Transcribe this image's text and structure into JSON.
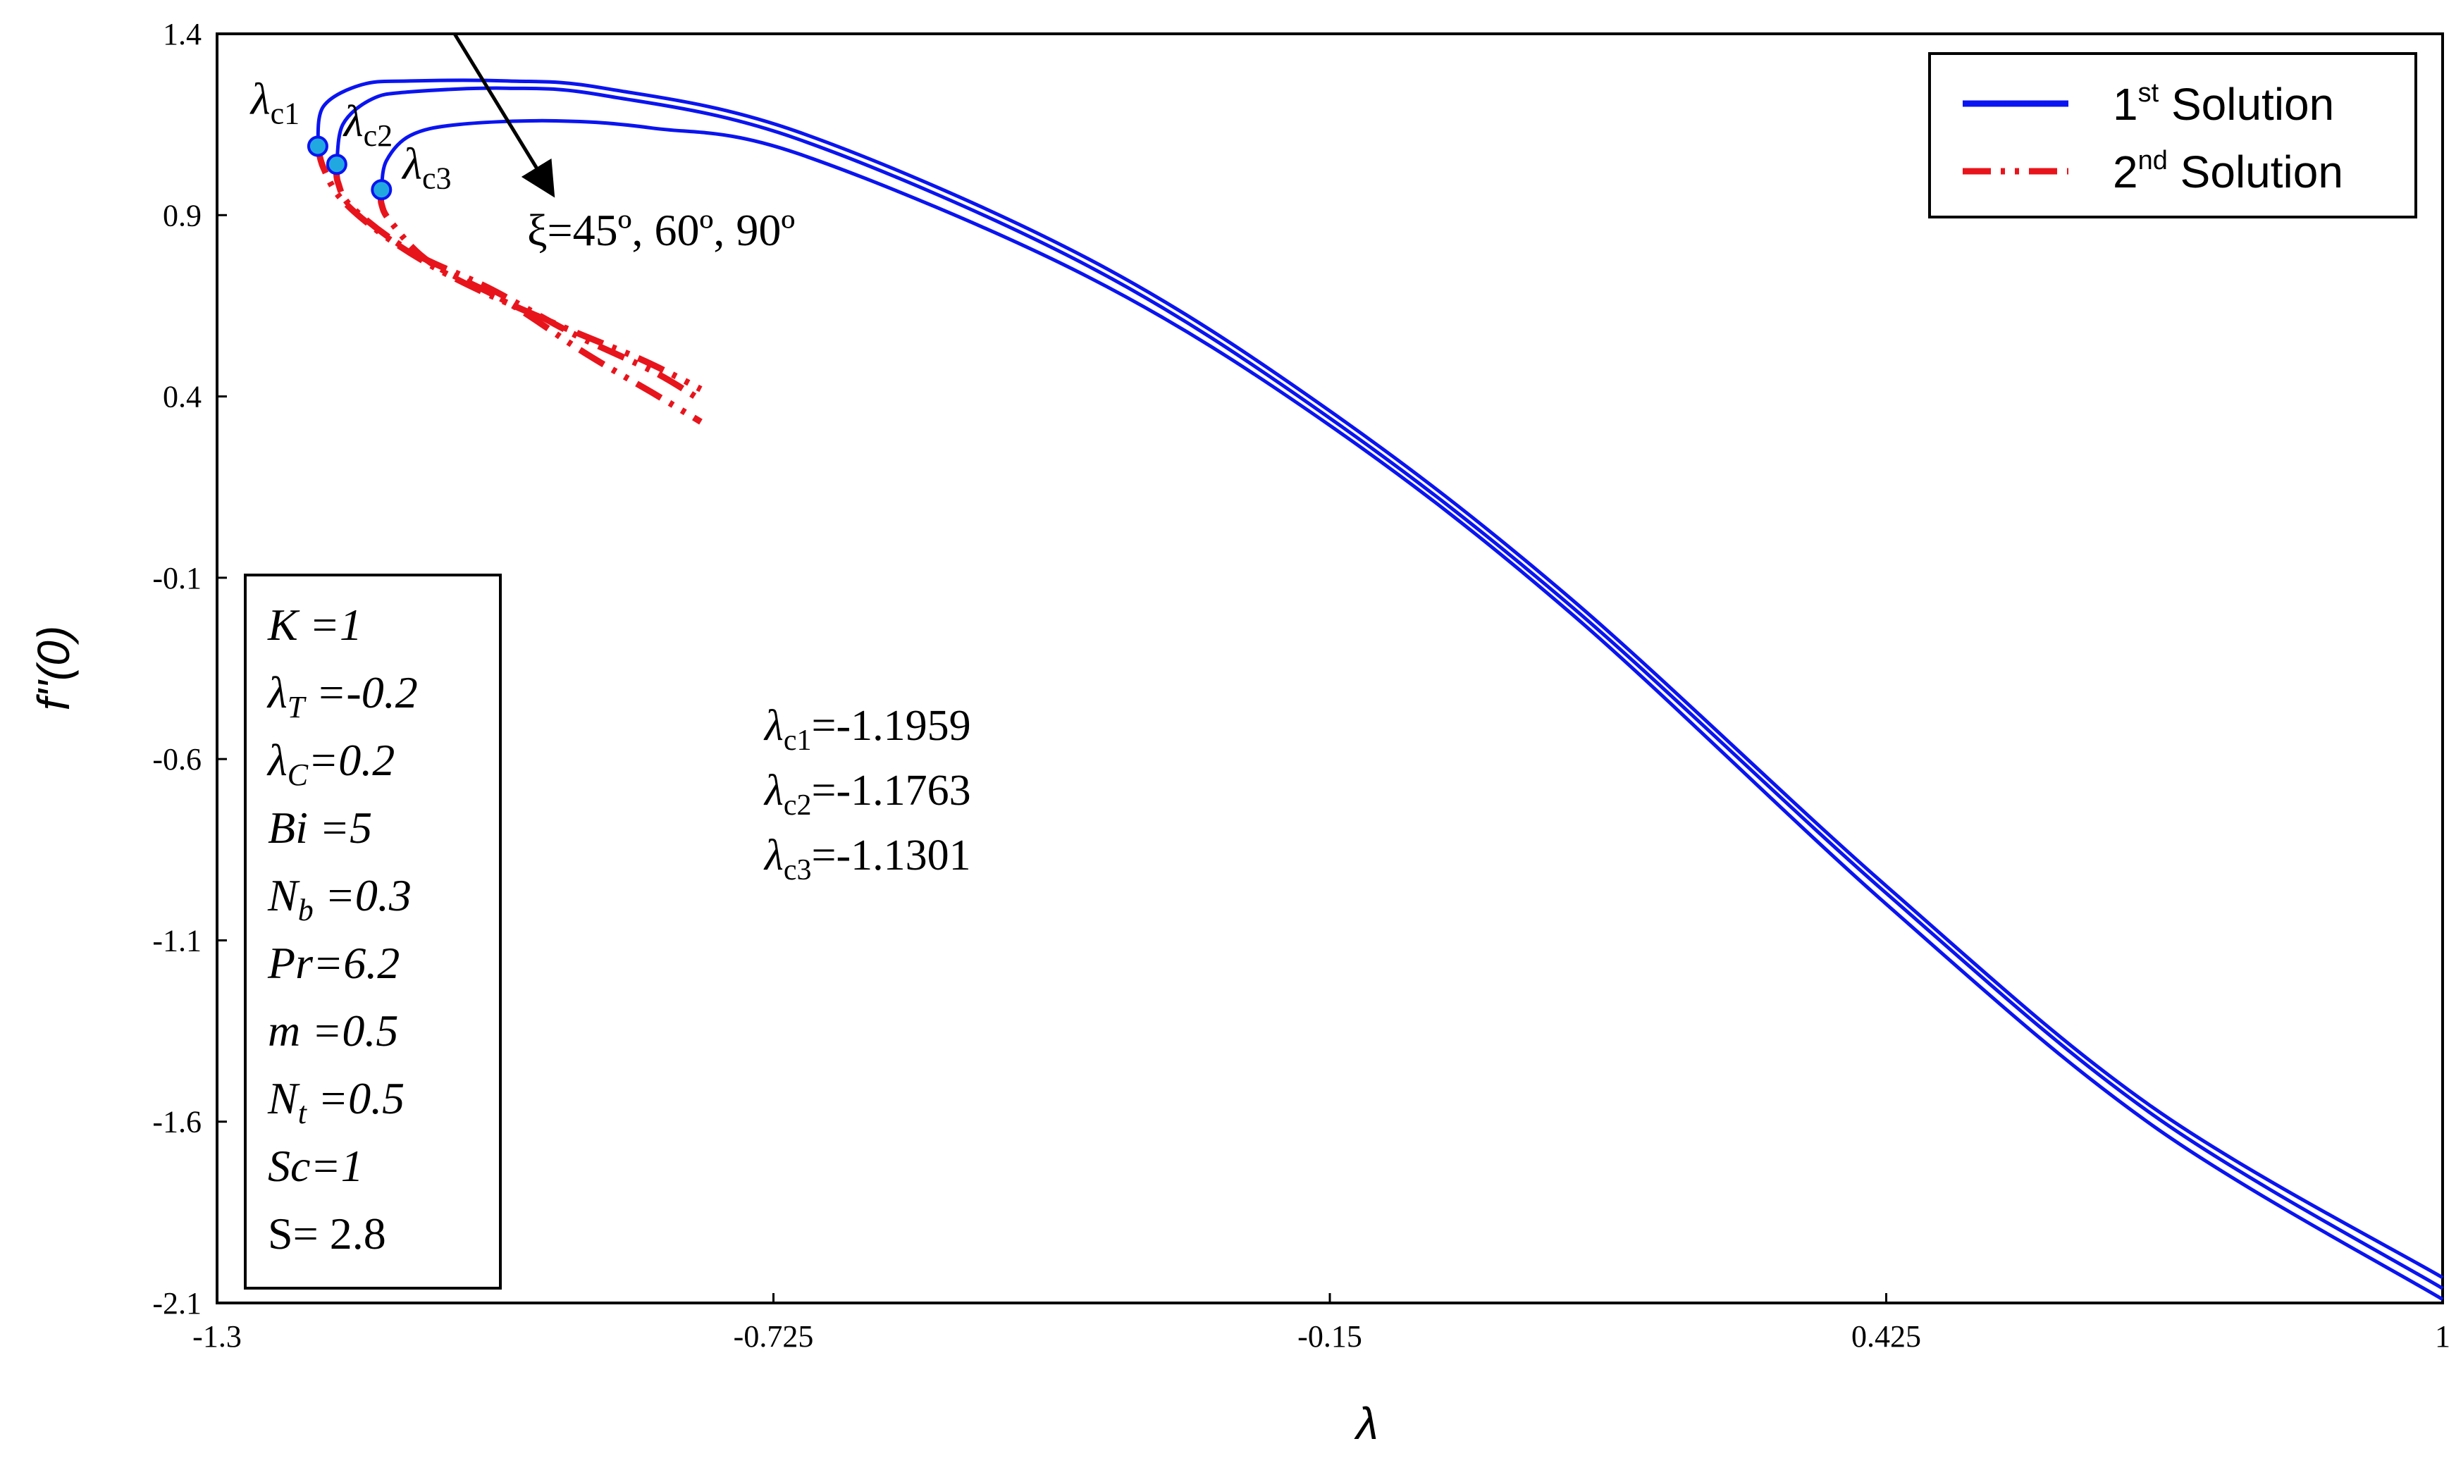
{
  "chart_data": {
    "type": "line",
    "title": "",
    "xlabel": "λ",
    "ylabel": "f''(0)",
    "xlim": [
      -1.3,
      1
    ],
    "ylim": [
      -2.1,
      1.4
    ],
    "x_ticks": [
      "-1.3",
      "-0.725",
      "-0.15",
      "0.425",
      "1"
    ],
    "y_ticks": [
      "1.4",
      "0.9",
      "0.4",
      "-0.1",
      "-0.6",
      "-1.1",
      "-1.6",
      "-2.1"
    ],
    "grid": false,
    "legend_position": "top-right",
    "legend": [
      {
        "label": "1st Solution",
        "color": "#0a14f0",
        "style": "solid"
      },
      {
        "label": "2nd Solution",
        "color": "#e8141c",
        "style": "dash-dot-dot"
      }
    ],
    "series": [
      {
        "group": "1st Solution",
        "color": "#0a14f0",
        "x": [
          -1.1959,
          -1.19,
          -1.15,
          -1.1,
          -1.0,
          -0.9,
          -0.7,
          -0.4,
          -0.15,
          0.1,
          0.425,
          0.7,
          1.0
        ],
        "y": [
          1.09,
          1.2,
          1.26,
          1.27,
          1.27,
          1.25,
          1.13,
          0.78,
          0.36,
          -0.16,
          -0.95,
          -1.56,
          -2.03
        ]
      },
      {
        "group": "1st Solution",
        "color": "#0a14f0",
        "x": [
          -1.1763,
          -1.17,
          -1.14,
          -1.1,
          -1.0,
          -0.9,
          -0.7,
          -0.4,
          -0.15,
          0.1,
          0.425,
          0.7,
          1.0
        ],
        "y": [
          1.04,
          1.15,
          1.22,
          1.24,
          1.25,
          1.23,
          1.11,
          0.76,
          0.34,
          -0.18,
          -0.97,
          -1.58,
          -2.06
        ]
      },
      {
        "group": "1st Solution",
        "color": "#0a14f0",
        "x": [
          -1.1301,
          -1.125,
          -1.1,
          -1.05,
          -0.95,
          -0.85,
          -0.7,
          -0.4,
          -0.15,
          0.1,
          0.425,
          0.7,
          1.0
        ],
        "y": [
          0.97,
          1.05,
          1.12,
          1.15,
          1.16,
          1.14,
          1.07,
          0.73,
          0.32,
          -0.2,
          -1.0,
          -1.61,
          -2.09
        ]
      },
      {
        "group": "2nd Solution",
        "color": "#e8141c",
        "x": [
          -1.1959,
          -1.19,
          -1.17,
          -1.12,
          -1.05,
          -0.95,
          -0.86,
          -0.8
        ],
        "y": [
          1.09,
          1.03,
          0.94,
          0.83,
          0.72,
          0.6,
          0.5,
          0.42
        ]
      },
      {
        "group": "2nd Solution",
        "color": "#e8141c",
        "x": [
          -1.1763,
          -1.175,
          -1.16,
          -1.1,
          -1.02,
          -0.93,
          -0.85,
          -0.8
        ],
        "y": [
          1.04,
          0.99,
          0.92,
          0.8,
          0.7,
          0.57,
          0.47,
          0.39
        ]
      },
      {
        "group": "2nd Solution",
        "color": "#e8141c",
        "x": [
          -1.1301,
          -1.13,
          -1.12,
          -1.08,
          -1.0,
          -0.92,
          -0.85,
          -0.8
        ],
        "y": [
          0.97,
          0.93,
          0.88,
          0.77,
          0.66,
          0.52,
          0.41,
          0.33
        ]
      }
    ],
    "critical_points": [
      {
        "label_base": "λ",
        "label_sub": "c1",
        "x": -1.1959,
        "y": 1.09
      },
      {
        "label_base": "λ",
        "label_sub": "c2",
        "x": -1.1763,
        "y": 1.04
      },
      {
        "label_base": "λ",
        "label_sub": "c3",
        "x": -1.1301,
        "y": 0.97
      }
    ],
    "annotations": {
      "arrow_label": "ξ=45º, 60º, 90º",
      "critical_values": [
        {
          "base": "λ",
          "sub": "c1",
          "value": "=-1.1959"
        },
        {
          "base": "λ",
          "sub": "c2",
          "value": "=-1.1763"
        },
        {
          "base": "λ",
          "sub": "c3",
          "value": "=-1.1301"
        }
      ]
    },
    "parameters": [
      {
        "base": "K",
        "sub": "",
        "value": " =1"
      },
      {
        "base": "λ",
        "sub": "T",
        "value": " =-0.2"
      },
      {
        "base": "λ",
        "sub": "C",
        "value": "=0.2"
      },
      {
        "base": "Bi",
        "sub": "",
        "value": " =5"
      },
      {
        "base": "N",
        "sub": "b",
        "value": " =0.3"
      },
      {
        "base": "Pr",
        "sub": "",
        "value": "=6.2"
      },
      {
        "base": "m",
        "sub": "",
        "value": " =0.5"
      },
      {
        "base": "N",
        "sub": "t",
        "value": " =0.5"
      },
      {
        "base": "Sc",
        "sub": "",
        "value": "=1"
      },
      {
        "base": "S",
        "sub": "",
        "value": "= 2.8"
      }
    ]
  },
  "legend_labels": {
    "first_num": "1",
    "first_sup": "st",
    "first_rest": " Solution",
    "second_num": "2",
    "second_sup": "nd",
    "second_rest": " Solution"
  }
}
